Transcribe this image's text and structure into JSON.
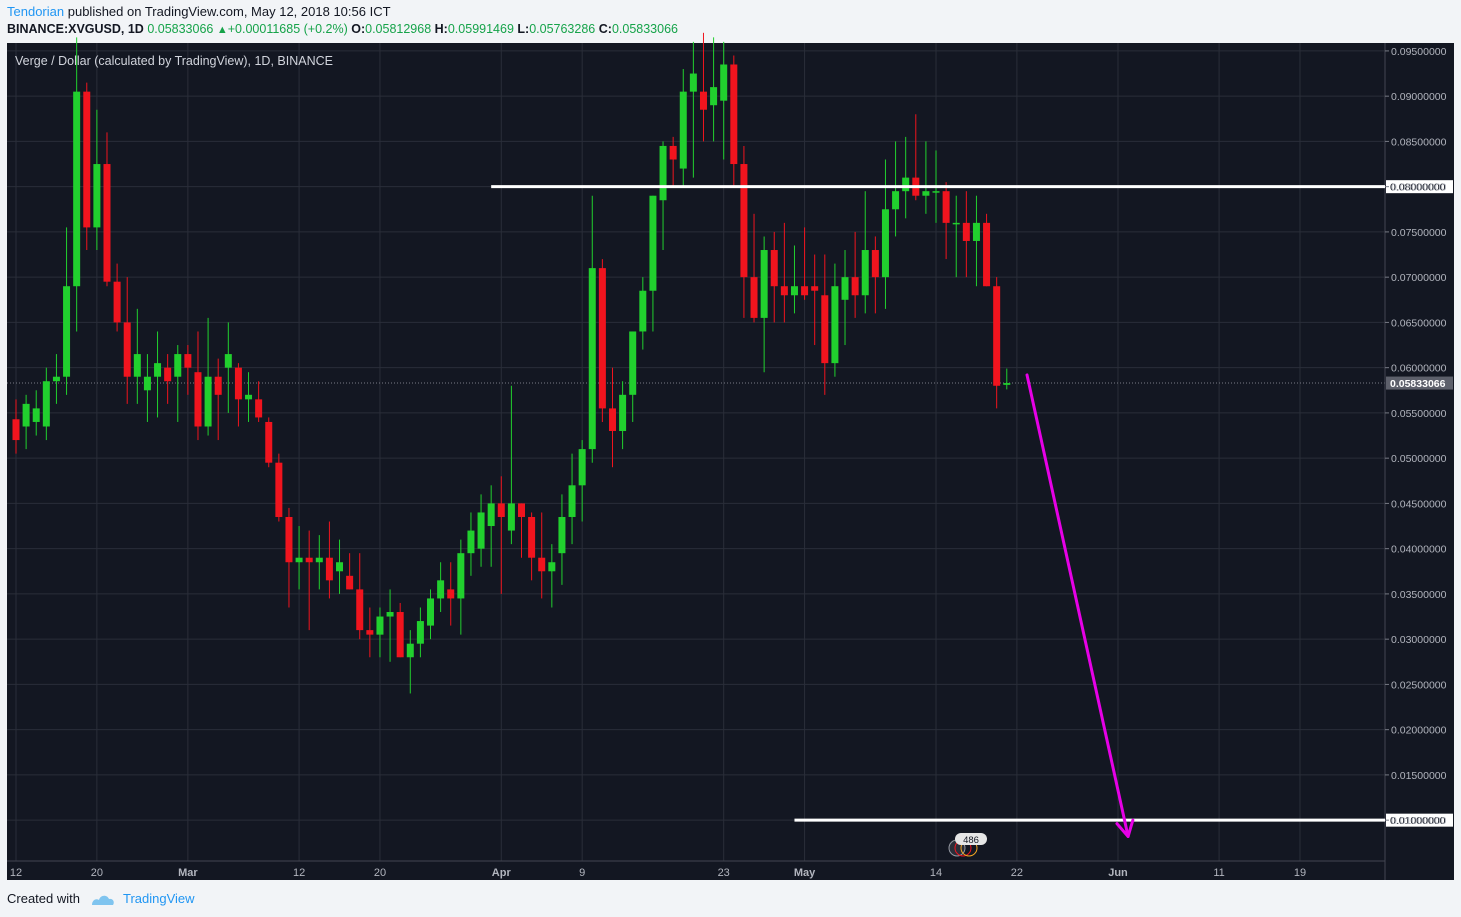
{
  "header": {
    "author": "Tendorian",
    "published": "published on TradingView.com, May 12, 2018 10:56 ICT",
    "symbol": "BINANCE:XVGUSD, 1D",
    "last": "0.05833066",
    "change_arrow": "▲",
    "change": "+0.00011685 (+0.2%)",
    "o_label": "O:",
    "o_value": "0.05812968",
    "h_label": "H:",
    "h_value": "0.05991469",
    "l_label": "L:",
    "l_value": "0.05763286",
    "c_label": "C:",
    "c_value": "0.05833066"
  },
  "footer": {
    "created_with": "Created with",
    "brand": "TradingView"
  },
  "colors": {
    "background": "#131722",
    "up": "#21d02e",
    "down": "#f0141e",
    "grid": "#2a2e39",
    "level_line": "#ffffff",
    "arrow": "#e600e6",
    "axis_text": "#b2b5be"
  },
  "chart_data": {
    "type": "candlestick",
    "title": "Verge / Dollar (calculated by TradingView), 1D, BINANCE",
    "ylim": [
      0.005,
      0.097
    ],
    "y_ticks": [
      "0.09500000",
      "0.09000000",
      "0.08500000",
      "0.08000000",
      "0.07500000",
      "0.07000000",
      "0.06500000",
      "0.06000000",
      "0.05500000",
      "0.05000000",
      "0.04500000",
      "0.04000000",
      "0.03500000",
      "0.03000000",
      "0.02500000",
      "0.02000000",
      "0.01500000",
      "0.01000000"
    ],
    "current_price_label": "0.05833066",
    "x_ticks": [
      {
        "date": "2018-02-12",
        "label": "12"
      },
      {
        "date": "2018-02-20",
        "label": "20"
      },
      {
        "date": "2018-03-01",
        "label": "Mar"
      },
      {
        "date": "2018-03-12",
        "label": "12"
      },
      {
        "date": "2018-03-20",
        "label": "20"
      },
      {
        "date": "2018-04-01",
        "label": "Apr"
      },
      {
        "date": "2018-04-09",
        "label": "9"
      },
      {
        "date": "2018-04-23",
        "label": "23"
      },
      {
        "date": "2018-05-01",
        "label": "May"
      },
      {
        "date": "2018-05-14",
        "label": "14"
      },
      {
        "date": "2018-05-22",
        "label": "22"
      },
      {
        "date": "2018-06-01",
        "label": "Jun"
      },
      {
        "date": "2018-06-11",
        "label": "11"
      },
      {
        "date": "2018-06-19",
        "label": "19"
      }
    ],
    "candles": [
      [
        "2018-02-12",
        0.0543,
        0.0565,
        0.0505,
        0.052
      ],
      [
        "2018-02-13",
        0.0535,
        0.057,
        0.051,
        0.056
      ],
      [
        "2018-02-14",
        0.054,
        0.0575,
        0.0525,
        0.0555
      ],
      [
        "2018-02-15",
        0.0535,
        0.06,
        0.052,
        0.0585
      ],
      [
        "2018-02-16",
        0.0585,
        0.0615,
        0.056,
        0.059
      ],
      [
        "2018-02-17",
        0.059,
        0.0755,
        0.057,
        0.069
      ],
      [
        "2018-02-18",
        0.069,
        0.0965,
        0.064,
        0.0905
      ],
      [
        "2018-02-19",
        0.0905,
        0.0915,
        0.073,
        0.0755
      ],
      [
        "2018-02-20",
        0.0755,
        0.0885,
        0.073,
        0.0825
      ],
      [
        "2018-02-21",
        0.0825,
        0.086,
        0.069,
        0.0695
      ],
      [
        "2018-02-22",
        0.0695,
        0.0715,
        0.064,
        0.065
      ],
      [
        "2018-02-23",
        0.065,
        0.07,
        0.056,
        0.059
      ],
      [
        "2018-02-24",
        0.059,
        0.0665,
        0.056,
        0.0615
      ],
      [
        "2018-02-25",
        0.0575,
        0.0615,
        0.054,
        0.059
      ],
      [
        "2018-02-26",
        0.059,
        0.064,
        0.0545,
        0.0605
      ],
      [
        "2018-02-27",
        0.06,
        0.0615,
        0.056,
        0.0585
      ],
      [
        "2018-02-28",
        0.059,
        0.0625,
        0.054,
        0.0615
      ],
      [
        "2018-03-01",
        0.0615,
        0.0625,
        0.057,
        0.06
      ],
      [
        "2018-03-02",
        0.0595,
        0.064,
        0.052,
        0.0535
      ],
      [
        "2018-03-03",
        0.0535,
        0.0655,
        0.0525,
        0.059
      ],
      [
        "2018-03-04",
        0.059,
        0.061,
        0.052,
        0.057
      ],
      [
        "2018-03-05",
        0.06,
        0.065,
        0.055,
        0.0615
      ],
      [
        "2018-03-06",
        0.06,
        0.0605,
        0.0535,
        0.0565
      ],
      [
        "2018-03-07",
        0.0565,
        0.0595,
        0.054,
        0.057
      ],
      [
        "2018-03-08",
        0.0565,
        0.0585,
        0.054,
        0.0545
      ],
      [
        "2018-03-09",
        0.054,
        0.0545,
        0.049,
        0.0495
      ],
      [
        "2018-03-10",
        0.0495,
        0.0505,
        0.043,
        0.0435
      ],
      [
        "2018-03-11",
        0.0435,
        0.0445,
        0.0335,
        0.0385
      ],
      [
        "2018-03-12",
        0.0385,
        0.0425,
        0.0355,
        0.039
      ],
      [
        "2018-03-13",
        0.039,
        0.042,
        0.031,
        0.0385
      ],
      [
        "2018-03-14",
        0.0385,
        0.0415,
        0.0355,
        0.039
      ],
      [
        "2018-03-15",
        0.039,
        0.043,
        0.0345,
        0.0365
      ],
      [
        "2018-03-16",
        0.0375,
        0.041,
        0.035,
        0.0385
      ],
      [
        "2018-03-17",
        0.037,
        0.0395,
        0.0355,
        0.0355
      ],
      [
        "2018-03-18",
        0.0355,
        0.0395,
        0.03,
        0.031
      ],
      [
        "2018-03-19",
        0.031,
        0.0335,
        0.028,
        0.0305
      ],
      [
        "2018-03-20",
        0.0305,
        0.0335,
        0.028,
        0.0325
      ],
      [
        "2018-03-21",
        0.0325,
        0.0355,
        0.0275,
        0.033
      ],
      [
        "2018-03-22",
        0.033,
        0.034,
        0.028,
        0.028
      ],
      [
        "2018-03-23",
        0.028,
        0.031,
        0.024,
        0.0295
      ],
      [
        "2018-03-24",
        0.0295,
        0.0335,
        0.028,
        0.032
      ],
      [
        "2018-03-25",
        0.0315,
        0.0355,
        0.03,
        0.0345
      ],
      [
        "2018-03-26",
        0.0345,
        0.0385,
        0.033,
        0.0365
      ],
      [
        "2018-03-27",
        0.0355,
        0.0385,
        0.0315,
        0.0345
      ],
      [
        "2018-03-28",
        0.0345,
        0.041,
        0.0305,
        0.0395
      ],
      [
        "2018-03-29",
        0.0395,
        0.044,
        0.037,
        0.042
      ],
      [
        "2018-03-30",
        0.04,
        0.046,
        0.038,
        0.044
      ],
      [
        "2018-03-31",
        0.0425,
        0.047,
        0.038,
        0.045
      ],
      [
        "2018-04-01",
        0.045,
        0.048,
        0.035,
        0.0435
      ],
      [
        "2018-04-02",
        0.042,
        0.058,
        0.0405,
        0.045
      ],
      [
        "2018-04-03",
        0.045,
        0.045,
        0.039,
        0.0435
      ],
      [
        "2018-04-04",
        0.0435,
        0.044,
        0.0365,
        0.039
      ],
      [
        "2018-04-05",
        0.039,
        0.044,
        0.0345,
        0.0375
      ],
      [
        "2018-04-06",
        0.0375,
        0.0405,
        0.0335,
        0.0385
      ],
      [
        "2018-04-07",
        0.0395,
        0.046,
        0.036,
        0.0435
      ],
      [
        "2018-04-08",
        0.0435,
        0.0505,
        0.0405,
        0.047
      ],
      [
        "2018-04-09",
        0.047,
        0.052,
        0.043,
        0.051
      ],
      [
        "2018-04-10",
        0.051,
        0.079,
        0.0495,
        0.071
      ],
      [
        "2018-04-11",
        0.071,
        0.072,
        0.054,
        0.0555
      ],
      [
        "2018-04-12",
        0.0555,
        0.06,
        0.049,
        0.053
      ],
      [
        "2018-04-13",
        0.053,
        0.0585,
        0.051,
        0.057
      ],
      [
        "2018-04-14",
        0.057,
        0.064,
        0.054,
        0.064
      ],
      [
        "2018-04-15",
        0.064,
        0.07,
        0.062,
        0.0685
      ],
      [
        "2018-04-16",
        0.0685,
        0.079,
        0.064,
        0.079
      ],
      [
        "2018-04-17",
        0.0785,
        0.085,
        0.073,
        0.0845
      ],
      [
        "2018-04-18",
        0.0845,
        0.0855,
        0.08,
        0.083
      ],
      [
        "2018-04-19",
        0.082,
        0.093,
        0.08,
        0.0905
      ],
      [
        "2018-04-20",
        0.0905,
        0.096,
        0.081,
        0.0925
      ],
      [
        "2018-04-21",
        0.0905,
        0.097,
        0.085,
        0.0885
      ],
      [
        "2018-04-22",
        0.089,
        0.0965,
        0.085,
        0.091
      ],
      [
        "2018-04-23",
        0.0895,
        0.096,
        0.083,
        0.0935
      ],
      [
        "2018-04-24",
        0.0935,
        0.0945,
        0.08,
        0.0825
      ],
      [
        "2018-04-25",
        0.0825,
        0.0845,
        0.0655,
        0.07
      ],
      [
        "2018-04-26",
        0.07,
        0.077,
        0.065,
        0.0655
      ],
      [
        "2018-04-27",
        0.0655,
        0.0745,
        0.0595,
        0.073
      ],
      [
        "2018-04-28",
        0.073,
        0.075,
        0.065,
        0.069
      ],
      [
        "2018-04-29",
        0.069,
        0.076,
        0.065,
        0.068
      ],
      [
        "2018-04-30",
        0.068,
        0.0735,
        0.066,
        0.069
      ],
      [
        "2018-05-01",
        0.069,
        0.0755,
        0.0675,
        0.068
      ],
      [
        "2018-05-02",
        0.069,
        0.0725,
        0.0625,
        0.0685
      ],
      [
        "2018-05-03",
        0.068,
        0.0725,
        0.057,
        0.0605
      ],
      [
        "2018-05-04",
        0.0605,
        0.0715,
        0.059,
        0.069
      ],
      [
        "2018-05-05",
        0.0675,
        0.073,
        0.0625,
        0.07
      ],
      [
        "2018-05-06",
        0.07,
        0.075,
        0.0655,
        0.068
      ],
      [
        "2018-05-07",
        0.068,
        0.0795,
        0.066,
        0.073
      ],
      [
        "2018-05-08",
        0.073,
        0.0745,
        0.066,
        0.07
      ],
      [
        "2018-05-09",
        0.07,
        0.083,
        0.0665,
        0.0775
      ],
      [
        "2018-05-10",
        0.0775,
        0.085,
        0.0745,
        0.0795
      ],
      [
        "2018-05-11",
        0.0795,
        0.0855,
        0.0765,
        0.081
      ],
      [
        "2018-05-12",
        0.081,
        0.088,
        0.0785,
        0.079
      ],
      [
        "2018-05-13",
        0.079,
        0.085,
        0.077,
        0.0795
      ],
      [
        "2018-05-14",
        0.0795,
        0.084,
        0.076,
        0.0795
      ],
      [
        "2018-05-15",
        0.0795,
        0.0805,
        0.072,
        0.076
      ],
      [
        "2018-05-16",
        0.076,
        0.079,
        0.07,
        0.076
      ],
      [
        "2018-05-17",
        0.076,
        0.0795,
        0.07,
        0.074
      ],
      [
        "2018-05-18",
        0.074,
        0.079,
        0.069,
        0.076
      ],
      [
        "2018-05-19",
        0.076,
        0.077,
        0.069,
        0.069
      ],
      [
        "2018-05-20",
        0.069,
        0.07,
        0.0555,
        0.058
      ],
      [
        "2018-05-21",
        0.0581,
        0.0599,
        0.0576,
        0.0583
      ]
    ],
    "horizontal_levels": [
      {
        "price": 0.08,
        "label": "0.08000000",
        "start_date": "2018-03-31"
      },
      {
        "price": 0.01,
        "label": "0.01000000",
        "start_date": "2018-04-30"
      }
    ],
    "projection": {
      "from": {
        "date": "2018-05-23",
        "price": 0.0592
      },
      "to": {
        "date": "2018-06-02",
        "price": 0.0082
      }
    },
    "event_badge": "486"
  }
}
